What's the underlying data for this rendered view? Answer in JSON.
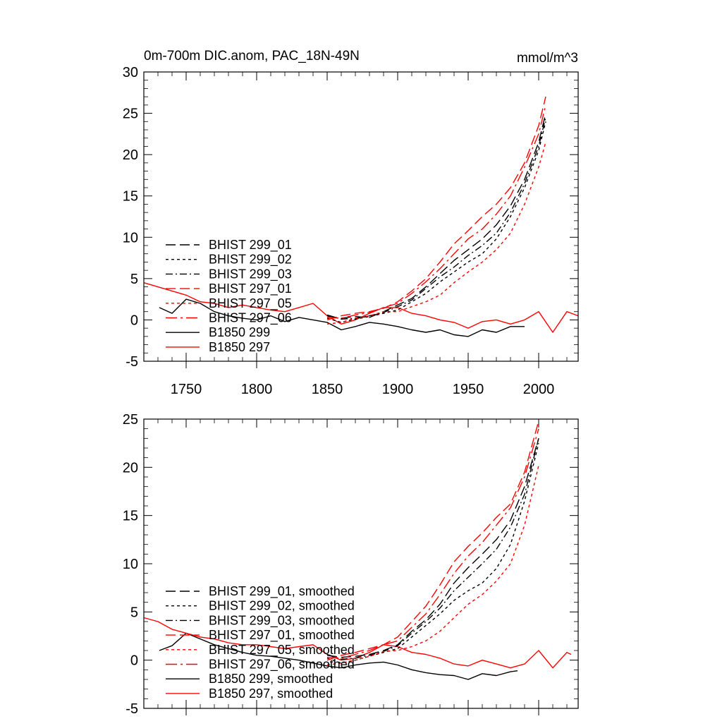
{
  "colors": {
    "black": "#000000",
    "red": "#ff0000"
  },
  "chart_data": [
    {
      "type": "line",
      "title": "0m-700m DIC.anom, PAC_18N-49N",
      "units": "mmol/m^3",
      "xlim": [
        1720,
        2028
      ],
      "ylim": [
        -5,
        30
      ],
      "yticks": [
        -5,
        0,
        5,
        10,
        15,
        20,
        25,
        30
      ],
      "xticks": [
        1750,
        1800,
        1850,
        1900,
        1950,
        2000
      ],
      "xtick_labels": [
        "1750",
        "1800",
        "1850",
        "1900",
        "1950",
        "2000"
      ],
      "legend_placement": "lower-left",
      "series": [
        {
          "name": "BHIST 299_01",
          "color": "#000000",
          "dash": "long-dash",
          "x": [
            1850,
            1860,
            1870,
            1880,
            1890,
            1900,
            1910,
            1920,
            1930,
            1940,
            1950,
            1960,
            1970,
            1980,
            1990,
            2000,
            2005
          ],
          "y": [
            0.5,
            0.2,
            0.4,
            0.3,
            1.0,
            1.8,
            2.6,
            4.0,
            5.6,
            7.2,
            8.5,
            9.8,
            11.5,
            13.8,
            17.0,
            21.5,
            25.0
          ]
        },
        {
          "name": "BHIST 299_02",
          "color": "#000000",
          "dash": "dot",
          "x": [
            1850,
            1860,
            1870,
            1880,
            1890,
            1900,
            1910,
            1920,
            1930,
            1940,
            1950,
            1960,
            1970,
            1980,
            1990,
            2000,
            2005
          ],
          "y": [
            0.2,
            -0.3,
            0.1,
            0.4,
            0.8,
            1.2,
            2.2,
            3.2,
            4.6,
            5.8,
            7.0,
            8.0,
            9.8,
            12.5,
            16.0,
            20.5,
            24.0
          ]
        },
        {
          "name": "BHIST 299_03",
          "color": "#000000",
          "dash": "dash-dot",
          "x": [
            1850,
            1860,
            1870,
            1880,
            1890,
            1900,
            1910,
            1920,
            1930,
            1940,
            1950,
            1960,
            1970,
            1980,
            1990,
            2000,
            2005
          ],
          "y": [
            0.6,
            0.1,
            0.2,
            0.5,
            0.9,
            1.6,
            2.4,
            3.8,
            5.2,
            6.4,
            7.8,
            9.0,
            10.5,
            13.0,
            16.5,
            21.0,
            24.5
          ]
        },
        {
          "name": "BHIST 297_01",
          "color": "#ff0000",
          "dash": "long-dash",
          "x": [
            1850,
            1860,
            1870,
            1880,
            1890,
            1900,
            1910,
            1920,
            1930,
            1940,
            1950,
            1960,
            1970,
            1980,
            1990,
            2000,
            2005
          ],
          "y": [
            0.0,
            0.5,
            0.8,
            1.0,
            1.4,
            2.2,
            3.5,
            5.0,
            7.0,
            9.2,
            10.8,
            12.5,
            14.0,
            16.0,
            19.0,
            23.5,
            27.0
          ]
        },
        {
          "name": "BHIST 297_05",
          "color": "#ff0000",
          "dash": "dot",
          "x": [
            1850,
            1860,
            1870,
            1880,
            1890,
            1900,
            1910,
            1920,
            1930,
            1940,
            1950,
            1960,
            1970,
            1980,
            1990,
            2000,
            2005
          ],
          "y": [
            -0.5,
            -0.3,
            0.2,
            0.5,
            1.0,
            1.0,
            1.6,
            2.2,
            3.0,
            4.5,
            5.8,
            7.0,
            8.5,
            10.5,
            14.0,
            18.5,
            21.5
          ]
        },
        {
          "name": "BHIST 297_06",
          "color": "#ff0000",
          "dash": "long-dash-dot",
          "x": [
            1850,
            1860,
            1870,
            1880,
            1890,
            1900,
            1910,
            1920,
            1930,
            1940,
            1950,
            1960,
            1970,
            1980,
            1990,
            2000,
            2005
          ],
          "y": [
            0.3,
            0.2,
            0.6,
            0.9,
            1.5,
            2.0,
            3.2,
            4.6,
            6.2,
            8.0,
            9.8,
            11.0,
            12.8,
            15.0,
            18.5,
            22.5,
            26.0
          ]
        },
        {
          "name": "B1850 299",
          "color": "#000000",
          "dash": "solid",
          "x": [
            1731,
            1740,
            1750,
            1760,
            1770,
            1780,
            1790,
            1800,
            1810,
            1820,
            1830,
            1840,
            1850,
            1860,
            1870,
            1880,
            1890,
            1900,
            1910,
            1920,
            1930,
            1940,
            1950,
            1960,
            1970,
            1980,
            1990
          ],
          "y": [
            1.5,
            0.8,
            2.5,
            2.0,
            1.0,
            0.5,
            0.2,
            0.0,
            0.5,
            -0.2,
            0.3,
            0.0,
            -0.3,
            -1.2,
            -0.8,
            -0.3,
            -0.5,
            -0.8,
            -1.2,
            -1.5,
            -1.2,
            -1.8,
            -2.0,
            -1.2,
            -1.5,
            -0.8,
            -0.8
          ]
        },
        {
          "name": "B1850 297",
          "color": "#ff0000",
          "dash": "solid",
          "x": [
            1720,
            1730,
            1740,
            1750,
            1760,
            1770,
            1780,
            1790,
            1800,
            1810,
            1820,
            1830,
            1840,
            1850,
            1860,
            1870,
            1880,
            1890,
            1900,
            1910,
            1920,
            1930,
            1940,
            1950,
            1960,
            1970,
            1980,
            1990,
            2000,
            2010,
            2020,
            2028
          ],
          "y": [
            4.5,
            4.0,
            3.5,
            3.0,
            2.2,
            2.0,
            1.5,
            1.8,
            1.5,
            1.2,
            1.0,
            1.5,
            2.0,
            0.5,
            -0.5,
            0.0,
            0.8,
            1.5,
            1.5,
            0.8,
            0.5,
            0.0,
            -0.3,
            -1.0,
            -0.2,
            0.0,
            -0.5,
            0.0,
            1.0,
            -1.5,
            1.0,
            0.5
          ]
        }
      ]
    },
    {
      "type": "line",
      "title": "",
      "xlim": [
        1720,
        2028
      ],
      "ylim": [
        -5,
        25
      ],
      "yticks": [
        -5,
        0,
        5,
        10,
        15,
        20,
        25
      ],
      "xticks": [
        1750,
        1800,
        1850,
        1900,
        1950,
        2000
      ],
      "legend_placement": "lower-left",
      "series": [
        {
          "name": "BHIST 299_01, smoothed",
          "color": "#000000",
          "dash": "long-dash",
          "x": [
            1850,
            1860,
            1870,
            1880,
            1890,
            1900,
            1910,
            1920,
            1930,
            1940,
            1950,
            1960,
            1970,
            1980,
            1990,
            2000
          ],
          "y": [
            0.5,
            0.3,
            0.4,
            0.6,
            1.0,
            1.6,
            3.0,
            4.2,
            5.8,
            8.0,
            9.6,
            11.0,
            12.5,
            14.5,
            18.0,
            23.0
          ]
        },
        {
          "name": "BHIST 299_02, smoothed",
          "color": "#000000",
          "dash": "dot",
          "x": [
            1850,
            1860,
            1870,
            1880,
            1890,
            1900,
            1910,
            1920,
            1930,
            1940,
            1950,
            1960,
            1970,
            1980,
            1990,
            2000
          ],
          "y": [
            0.2,
            -0.3,
            0.0,
            0.4,
            0.8,
            1.2,
            2.4,
            3.6,
            4.8,
            6.2,
            7.2,
            8.0,
            9.5,
            12.0,
            16.5,
            22.5
          ]
        },
        {
          "name": "BHIST 299_03, smoothed",
          "color": "#000000",
          "dash": "dash-dot",
          "x": [
            1850,
            1860,
            1870,
            1880,
            1890,
            1900,
            1910,
            1920,
            1930,
            1940,
            1950,
            1960,
            1970,
            1980,
            1990,
            2000
          ],
          "y": [
            0.6,
            0.1,
            0.2,
            0.5,
            0.9,
            1.5,
            2.8,
            4.0,
            5.4,
            7.2,
            8.6,
            10.0,
            11.5,
            13.8,
            17.2,
            23.0
          ]
        },
        {
          "name": "BHIST 297_01, smoothed",
          "color": "#ff0000",
          "dash": "long-dash",
          "x": [
            1850,
            1860,
            1870,
            1880,
            1890,
            1900,
            1910,
            1920,
            1930,
            1940,
            1950,
            1960,
            1970,
            1980,
            1990,
            2000
          ],
          "y": [
            0.0,
            0.5,
            0.8,
            1.2,
            1.6,
            2.4,
            4.0,
            5.6,
            7.8,
            10.2,
            11.8,
            13.2,
            14.8,
            16.2,
            19.5,
            24.8
          ]
        },
        {
          "name": "BHIST 297_05, smoothed",
          "color": "#ff0000",
          "dash": "dot",
          "x": [
            1850,
            1860,
            1870,
            1880,
            1890,
            1900,
            1910,
            1920,
            1930,
            1940,
            1950,
            1960,
            1970,
            1980,
            1990,
            2000
          ],
          "y": [
            -0.5,
            -0.3,
            0.0,
            0.4,
            0.9,
            1.0,
            1.4,
            2.0,
            3.0,
            4.4,
            5.8,
            6.8,
            8.2,
            10.0,
            14.0,
            20.2
          ]
        },
        {
          "name": "BHIST 297_06, smoothed",
          "color": "#ff0000",
          "dash": "long-dash-dot",
          "x": [
            1850,
            1860,
            1870,
            1880,
            1890,
            1900,
            1910,
            1920,
            1930,
            1940,
            1950,
            1960,
            1970,
            1980,
            1990,
            2000
          ],
          "y": [
            0.3,
            0.2,
            0.6,
            1.0,
            1.6,
            2.0,
            3.4,
            4.8,
            6.8,
            9.0,
            10.8,
            12.2,
            14.0,
            15.8,
            19.0,
            24.0
          ]
        },
        {
          "name": "B1850 299, smoothed",
          "color": "#000000",
          "dash": "solid",
          "x": [
            1731,
            1740,
            1750,
            1760,
            1770,
            1780,
            1790,
            1800,
            1810,
            1820,
            1830,
            1840,
            1850,
            1860,
            1870,
            1880,
            1890,
            1900,
            1910,
            1920,
            1930,
            1940,
            1950,
            1960,
            1970,
            1980,
            1985
          ],
          "y": [
            1.0,
            1.5,
            2.8,
            2.2,
            1.6,
            1.2,
            0.8,
            0.5,
            0.4,
            0.2,
            0.0,
            -0.3,
            -0.6,
            -0.8,
            -0.5,
            -0.3,
            -0.2,
            -0.5,
            -1.0,
            -1.3,
            -1.5,
            -1.6,
            -2.0,
            -1.4,
            -1.6,
            -1.2,
            -1.1
          ]
        },
        {
          "name": "B1850 297, smoothed",
          "color": "#ff0000",
          "dash": "solid",
          "x": [
            1720,
            1730,
            1740,
            1750,
            1760,
            1770,
            1780,
            1790,
            1800,
            1810,
            1820,
            1830,
            1840,
            1850,
            1860,
            1870,
            1880,
            1890,
            1900,
            1910,
            1920,
            1930,
            1940,
            1950,
            1960,
            1970,
            1980,
            1990,
            2000,
            2010,
            2020,
            2023
          ],
          "y": [
            4.4,
            4.0,
            3.2,
            2.8,
            2.4,
            2.2,
            1.8,
            1.6,
            1.6,
            1.4,
            1.2,
            1.4,
            1.6,
            0.6,
            0.0,
            0.2,
            0.8,
            1.6,
            1.4,
            0.8,
            0.6,
            0.2,
            -0.4,
            -0.6,
            0.0,
            -0.4,
            -0.8,
            -0.4,
            1.0,
            -0.8,
            0.8,
            0.6
          ]
        }
      ]
    }
  ]
}
